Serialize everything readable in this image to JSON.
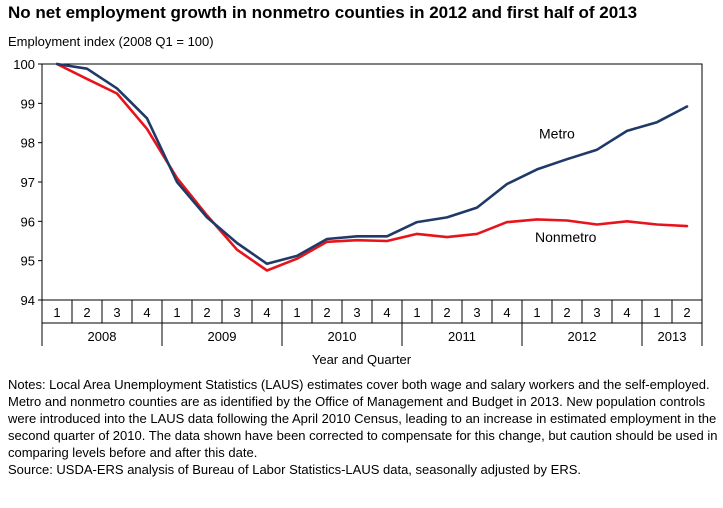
{
  "chart_data": {
    "type": "line",
    "title": "No net employment growth in nonmetro counties in 2012 and first half of 2013",
    "ylabel": "Employment index (2008 Q1 = 100)",
    "xlabel": "Year and Quarter",
    "ylim": [
      94,
      100
    ],
    "yticks": [
      "94",
      "95",
      "96",
      "97",
      "98",
      "99",
      "100"
    ],
    "quarters": [
      "1",
      "2",
      "3",
      "4",
      "1",
      "2",
      "3",
      "4",
      "1",
      "2",
      "3",
      "4",
      "1",
      "2",
      "3",
      "4",
      "1",
      "2",
      "3",
      "4",
      "1",
      "2"
    ],
    "years": [
      "2008",
      "2009",
      "2010",
      "2011",
      "2012",
      "2013"
    ],
    "grid": false,
    "series": [
      {
        "name": "Metro",
        "color": "#1f3a68",
        "values": [
          100.0,
          99.88,
          99.38,
          98.62,
          97.0,
          96.1,
          95.45,
          94.92,
          95.12,
          95.55,
          95.62,
          95.62,
          95.98,
          96.1,
          96.35,
          96.95,
          97.32,
          97.58,
          97.82,
          98.3,
          98.52,
          98.92
        ]
      },
      {
        "name": "Nonmetro",
        "color": "#e8141b",
        "values": [
          100.0,
          99.62,
          99.25,
          98.35,
          97.1,
          96.15,
          95.28,
          94.75,
          95.05,
          95.48,
          95.52,
          95.5,
          95.68,
          95.6,
          95.68,
          95.98,
          96.05,
          96.02,
          95.92,
          96.0,
          95.92,
          95.88
        ]
      }
    ]
  },
  "notes": {
    "line1": "Notes: Local Area Unemployment Statistics (LAUS) estimates cover both wage and salary workers and the self-employed. Metro and nonmetro counties are as identified by the Office of Management and Budget in 2013. New population controls were introduced into the LAUS data following the April 2010 Census, leading to an increase in estimated employment in the second quarter of 2010. The data shown have been corrected to compensate for this change, but caution should be used in comparing levels before and after this date.",
    "source": "Source: USDA-ERS analysis of Bureau of Labor Statistics-LAUS data, seasonally adjusted by ERS."
  }
}
